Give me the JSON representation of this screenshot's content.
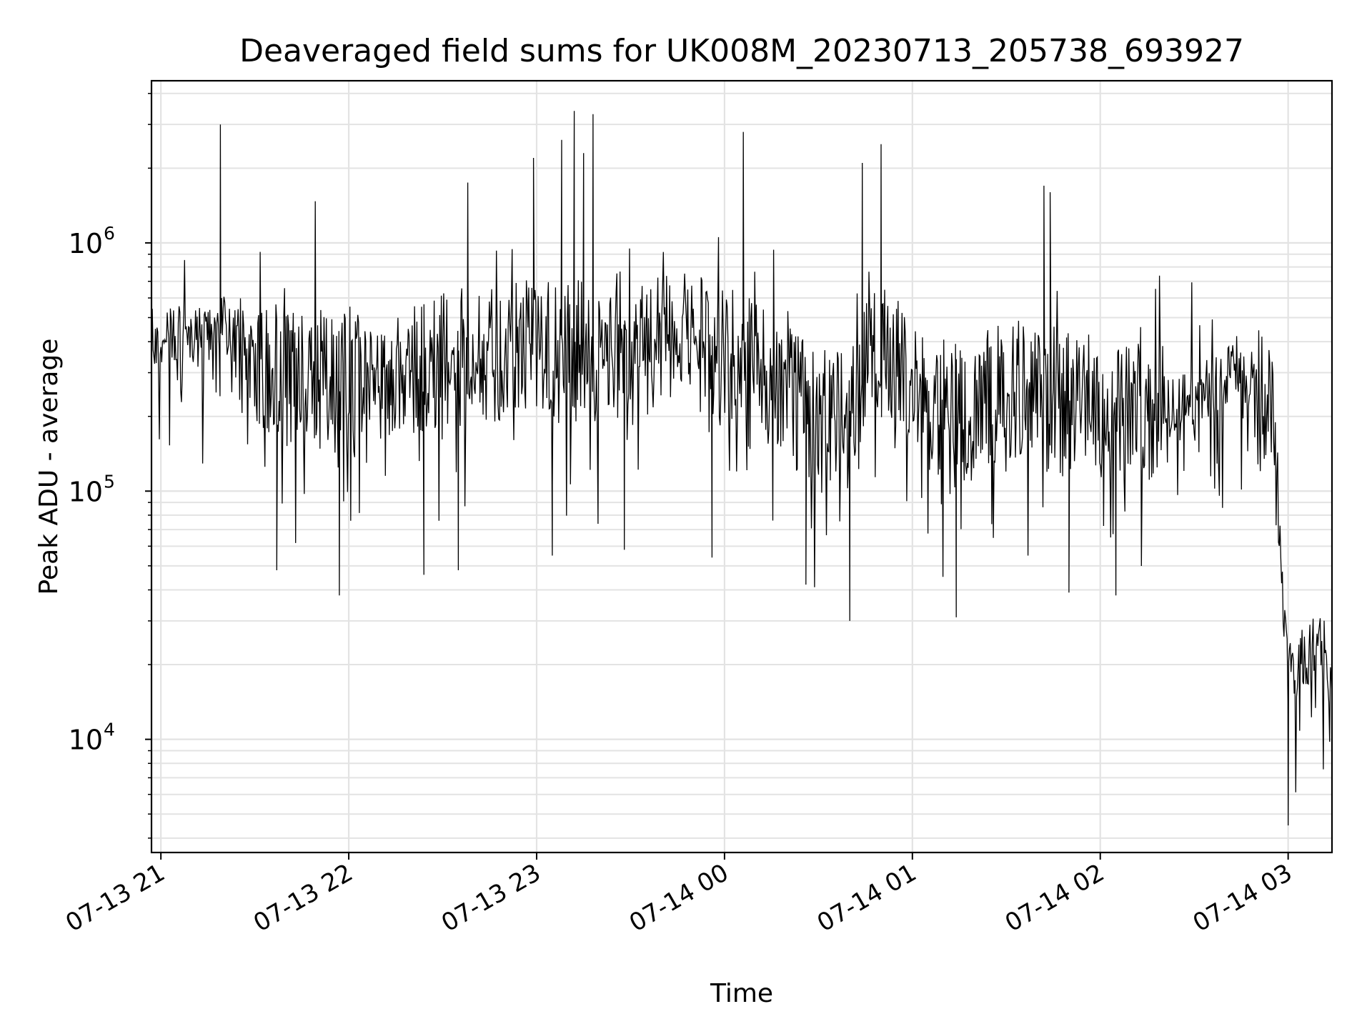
{
  "chart_data": {
    "type": "line",
    "title": "Deaveraged field sums for UK008M_20230713_205738_693927",
    "xlabel": "Time",
    "ylabel": "Peak ADU - average",
    "yscale": "log",
    "ylim": [
      3500,
      4500000
    ],
    "xlim": [
      "2023-07-13 20:57",
      "2023-07-14 03:14"
    ],
    "grid": true,
    "x_ticks": [
      {
        "t": "2023-07-13 21:00",
        "label": "07-13 21"
      },
      {
        "t": "2023-07-13 22:00",
        "label": "07-13 22"
      },
      {
        "t": "2023-07-13 23:00",
        "label": "07-13 23"
      },
      {
        "t": "2023-07-14 00:00",
        "label": "07-14 00"
      },
      {
        "t": "2023-07-14 01:00",
        "label": "07-14 01"
      },
      {
        "t": "2023-07-14 02:00",
        "label": "07-14 02"
      },
      {
        "t": "2023-07-14 03:00",
        "label": "07-14 03"
      }
    ],
    "y_ticks": [
      {
        "value": 10000,
        "base": "10",
        "exp": "4"
      },
      {
        "value": 100000,
        "base": "10",
        "exp": "5"
      },
      {
        "value": 1000000,
        "base": "10",
        "exp": "6"
      }
    ],
    "line_color": "#000000",
    "series": [
      {
        "x": [
          "2023-07-13 20:57",
          "2023-07-13 21:05",
          "2023-07-13 21:15",
          "2023-07-13 21:20",
          "2023-07-13 21:30",
          "2023-07-13 21:40",
          "2023-07-13 21:50",
          "2023-07-13 22:00",
          "2023-07-13 22:15",
          "2023-07-13 22:30",
          "2023-07-13 22:45",
          "2023-07-13 23:00",
          "2023-07-13 23:10",
          "2023-07-13 23:20",
          "2023-07-13 23:30",
          "2023-07-13 23:45",
          "2023-07-14 00:00",
          "2023-07-14 00:15",
          "2023-07-14 00:30",
          "2023-07-14 00:41",
          "2023-07-14 00:50",
          "2023-07-14 01:00",
          "2023-07-14 01:15",
          "2023-07-14 01:30",
          "2023-07-14 01:42",
          "2023-07-14 02:00",
          "2023-07-14 02:15",
          "2023-07-14 02:30",
          "2023-07-14 02:45",
          "2023-07-14 02:50",
          "2023-07-14 02:55",
          "2023-07-14 03:00",
          "2023-07-14 03:05",
          "2023-07-14 03:10",
          "2023-07-14 03:14"
        ],
        "y": [
          430000,
          450000,
          420000,
          500000,
          350000,
          300000,
          320000,
          310000,
          340000,
          360000,
          380000,
          400000,
          380000,
          370000,
          360000,
          450000,
          380000,
          300000,
          200000,
          260000,
          420000,
          250000,
          220000,
          270000,
          280000,
          230000,
          220000,
          240000,
          330000,
          260000,
          200000,
          20000,
          21000,
          29000,
          15000
        ]
      }
    ],
    "spikes_high": [
      {
        "x": "2023-07-13 21:19",
        "y": 3000000
      },
      {
        "x": "2023-07-13 22:38",
        "y": 1750000
      },
      {
        "x": "2023-07-13 22:59",
        "y": 2200000
      },
      {
        "x": "2023-07-13 23:08",
        "y": 2600000
      },
      {
        "x": "2023-07-13 23:12",
        "y": 3400000
      },
      {
        "x": "2023-07-13 23:15",
        "y": 2300000
      },
      {
        "x": "2023-07-13 23:18",
        "y": 3300000
      },
      {
        "x": "2023-07-14 00:06",
        "y": 2800000
      },
      {
        "x": "2023-07-14 00:44",
        "y": 2100000
      },
      {
        "x": "2023-07-14 00:50",
        "y": 2500000
      },
      {
        "x": "2023-07-14 01:42",
        "y": 1700000
      },
      {
        "x": "2023-07-14 01:44",
        "y": 1600000
      }
    ],
    "spikes_low": [
      {
        "x": "2023-07-13 21:37",
        "y": 48000
      },
      {
        "x": "2023-07-13 21:57",
        "y": 38000
      },
      {
        "x": "2023-07-13 22:24",
        "y": 46000
      },
      {
        "x": "2023-07-13 22:35",
        "y": 48000
      },
      {
        "x": "2023-07-13 23:05",
        "y": 55000
      },
      {
        "x": "2023-07-13 23:28",
        "y": 58000
      },
      {
        "x": "2023-07-13 23:56",
        "y": 54000
      },
      {
        "x": "2023-07-14 00:26",
        "y": 42000
      },
      {
        "x": "2023-07-14 00:40",
        "y": 30000
      },
      {
        "x": "2023-07-14 01:14",
        "y": 31000
      },
      {
        "x": "2023-07-14 01:50",
        "y": 39000
      },
      {
        "x": "2023-07-14 02:05",
        "y": 38000
      },
      {
        "x": "2023-07-14 03:00",
        "y": 4500
      },
      {
        "x": "2023-07-14 03:00",
        "y": 5000
      }
    ]
  }
}
